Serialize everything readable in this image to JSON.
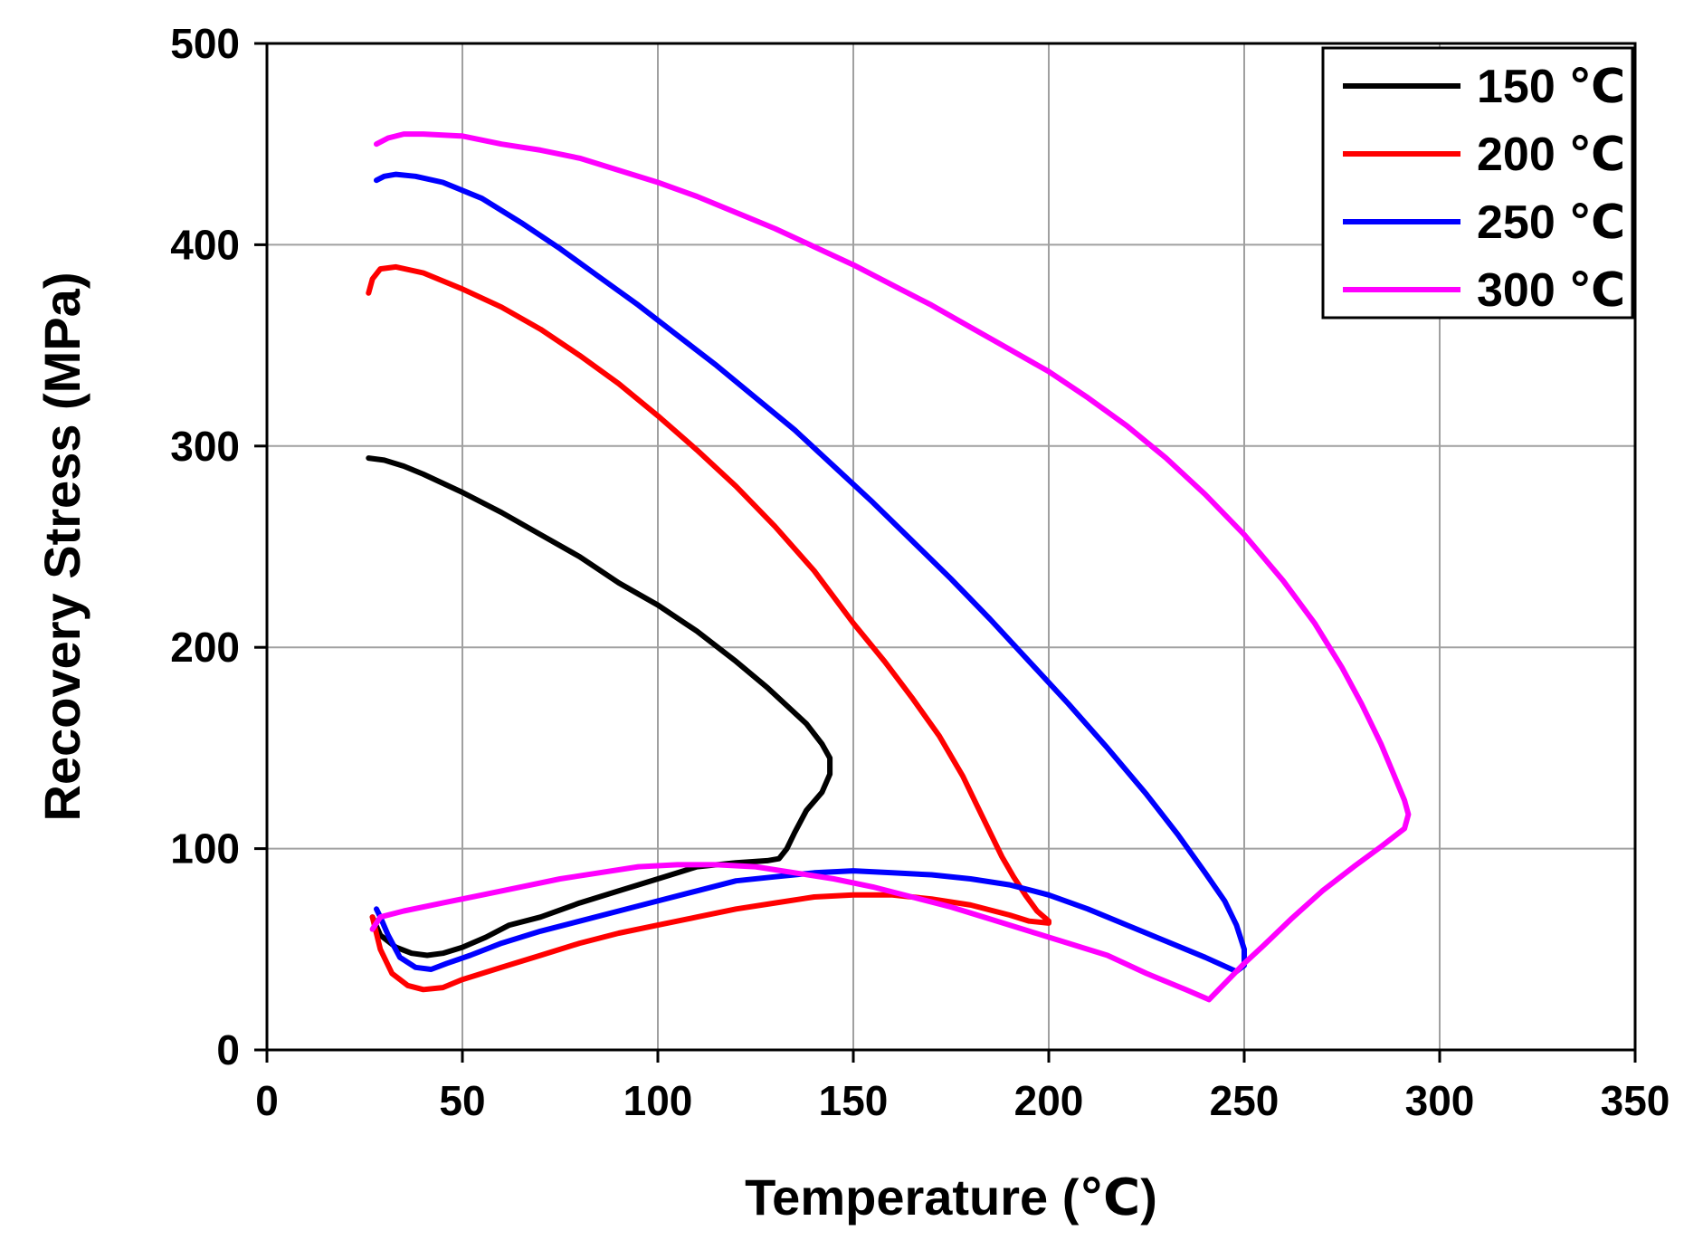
{
  "chart_data": {
    "type": "line",
    "title": "",
    "xlabel": "Temperature (℃)",
    "ylabel": "Recovery Stress (MPa)",
    "xlim": [
      0,
      350
    ],
    "ylim": [
      0,
      500
    ],
    "xticks": [
      0,
      50,
      100,
      150,
      200,
      250,
      300,
      350
    ],
    "yticks": [
      0,
      100,
      200,
      300,
      400,
      500
    ],
    "grid": true,
    "legend_position": "top-right",
    "series": [
      {
        "name": "150 ℃",
        "color": "#000000",
        "x": [
          26,
          30,
          35,
          40,
          50,
          60,
          70,
          80,
          90,
          100,
          110,
          120,
          128,
          133,
          138,
          142,
          144,
          144,
          142,
          138,
          135,
          133,
          131,
          128,
          120,
          110,
          100,
          90,
          80,
          70,
          62,
          56,
          50,
          45,
          41,
          37,
          33,
          29,
          27
        ],
        "y": [
          294,
          293,
          290,
          286,
          277,
          267,
          256,
          245,
          232,
          221,
          208,
          193,
          180,
          171,
          162,
          152,
          145,
          137,
          128,
          119,
          108,
          100,
          95,
          94,
          93,
          91,
          85,
          79,
          73,
          66,
          62,
          56,
          51,
          48,
          47,
          48,
          51,
          57,
          66
        ]
      },
      {
        "name": "200 ℃",
        "color": "#ff0000",
        "x": [
          26,
          27,
          29,
          33,
          40,
          50,
          60,
          70,
          80,
          90,
          100,
          110,
          120,
          130,
          140,
          150,
          158,
          165,
          172,
          178,
          182,
          185,
          188,
          191,
          194,
          197,
          200,
          200,
          195,
          190,
          180,
          170,
          160,
          150,
          140,
          130,
          120,
          110,
          100,
          90,
          80,
          70,
          60,
          50,
          45,
          40,
          36,
          32,
          29,
          27
        ],
        "y": [
          376,
          383,
          388,
          389,
          386,
          378,
          369,
          358,
          345,
          331,
          315,
          298,
          280,
          260,
          238,
          212,
          193,
          175,
          156,
          136,
          120,
          108,
          96,
          86,
          77,
          69,
          64,
          63,
          64,
          67,
          72,
          75,
          77,
          77,
          76,
          73,
          70,
          66,
          62,
          58,
          53,
          47,
          41,
          35,
          31,
          30,
          32,
          38,
          50,
          66
        ]
      },
      {
        "name": "250 ℃",
        "color": "#0000ff",
        "x": [
          28,
          30,
          33,
          38,
          45,
          55,
          65,
          75,
          85,
          95,
          105,
          115,
          125,
          135,
          145,
          155,
          165,
          175,
          185,
          195,
          205,
          215,
          225,
          233,
          240,
          245,
          248,
          250,
          250,
          248,
          240,
          230,
          220,
          210,
          200,
          190,
          180,
          170,
          160,
          150,
          140,
          130,
          120,
          110,
          100,
          90,
          80,
          70,
          60,
          52,
          46,
          42,
          38,
          34,
          31,
          29,
          28
        ],
        "y": [
          432,
          434,
          435,
          434,
          431,
          423,
          411,
          398,
          384,
          370,
          355,
          340,
          324,
          308,
          290,
          272,
          253,
          234,
          214,
          193,
          172,
          150,
          127,
          107,
          88,
          74,
          62,
          50,
          42,
          39,
          46,
          54,
          62,
          70,
          77,
          82,
          85,
          87,
          88,
          89,
          88,
          86,
          84,
          79,
          74,
          69,
          64,
          59,
          53,
          47,
          43,
          40,
          41,
          46,
          57,
          66,
          70
        ]
      },
      {
        "name": "300 ℃",
        "color": "#ff00ff",
        "x": [
          28,
          31,
          35,
          40,
          50,
          60,
          70,
          80,
          90,
          100,
          110,
          120,
          130,
          140,
          150,
          160,
          170,
          180,
          190,
          200,
          210,
          220,
          230,
          240,
          250,
          260,
          268,
          275,
          280,
          285,
          288,
          291,
          292,
          291,
          285,
          278,
          270,
          262,
          255,
          250,
          246,
          241,
          235,
          225,
          215,
          205,
          195,
          185,
          175,
          165,
          155,
          145,
          135,
          125,
          115,
          105,
          95,
          85,
          75,
          65,
          55,
          45,
          35,
          29,
          27
        ],
        "y": [
          450,
          453,
          455,
          455,
          454,
          450,
          447,
          443,
          437,
          431,
          424,
          416,
          408,
          399,
          390,
          380,
          370,
          359,
          348,
          337,
          324,
          310,
          294,
          276,
          256,
          233,
          212,
          190,
          172,
          152,
          138,
          124,
          117,
          110,
          101,
          91,
          79,
          65,
          52,
          43,
          35,
          25,
          30,
          38,
          47,
          53,
          59,
          65,
          71,
          76,
          81,
          85,
          88,
          91,
          92,
          92,
          91,
          88,
          85,
          81,
          77,
          73,
          69,
          66,
          60
        ]
      }
    ]
  }
}
